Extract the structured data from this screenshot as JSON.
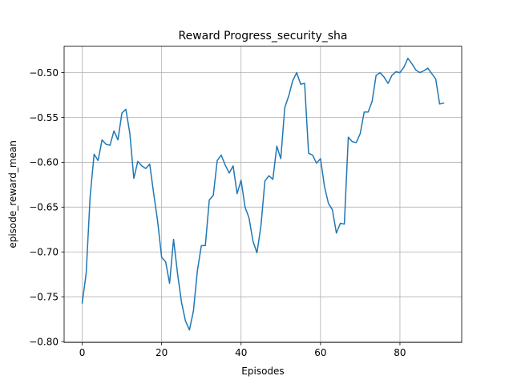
{
  "chart_data": {
    "type": "line",
    "title": "Reward Progress_security_sha",
    "xlabel": "Episodes",
    "ylabel": "episode_reward_mean",
    "grid": true,
    "xlim": [
      -4.55,
      95.55
    ],
    "ylim": [
      -0.801,
      -0.4705
    ],
    "xticks": [
      0,
      20,
      40,
      60,
      80
    ],
    "xtick_labels": [
      "0",
      "20",
      "40",
      "60",
      "80"
    ],
    "yticks": [
      -0.8,
      -0.75,
      -0.7,
      -0.65,
      -0.6,
      -0.55,
      -0.5
    ],
    "ytick_labels": [
      "−0.80",
      "−0.75",
      "−0.70",
      "−0.65",
      "−0.60",
      "−0.55",
      "−0.50"
    ],
    "colors": {
      "line": "#1f77b4",
      "grid": "#b0b0b0"
    },
    "series": [
      {
        "x": [
          0,
          1,
          2,
          3,
          4,
          5,
          6,
          7,
          8,
          9,
          10,
          11,
          12,
          13,
          14,
          15,
          16,
          17,
          18,
          19,
          20,
          21,
          22,
          23,
          24,
          25,
          26,
          27,
          28,
          29,
          30,
          31,
          32,
          33,
          34,
          35,
          36,
          37,
          38,
          39,
          40,
          41,
          42,
          43,
          44,
          45,
          46,
          47,
          48,
          49,
          50,
          51,
          52,
          53,
          54,
          55,
          56,
          57,
          58,
          59,
          60,
          61,
          62,
          63,
          64,
          65,
          66,
          67,
          68,
          69,
          70,
          71,
          72,
          73,
          74,
          75,
          76,
          77,
          78,
          79,
          80,
          81,
          82,
          83,
          84,
          85,
          86,
          87,
          88,
          89,
          90,
          91
        ],
        "values": [
          -0.757,
          -0.724,
          -0.638,
          -0.591,
          -0.598,
          -0.575,
          -0.58,
          -0.581,
          -0.565,
          -0.575,
          -0.545,
          -0.541,
          -0.568,
          -0.618,
          -0.599,
          -0.604,
          -0.607,
          -0.602,
          -0.635,
          -0.666,
          -0.706,
          -0.711,
          -0.735,
          -0.686,
          -0.724,
          -0.756,
          -0.777,
          -0.787,
          -0.766,
          -0.721,
          -0.693,
          -0.693,
          -0.642,
          -0.637,
          -0.598,
          -0.592,
          -0.603,
          -0.612,
          -0.604,
          -0.635,
          -0.62,
          -0.65,
          -0.662,
          -0.688,
          -0.701,
          -0.671,
          -0.621,
          -0.615,
          -0.619,
          -0.582,
          -0.596,
          -0.539,
          -0.526,
          -0.509,
          -0.5,
          -0.513,
          -0.512,
          -0.59,
          -0.592,
          -0.601,
          -0.596,
          -0.627,
          -0.646,
          -0.653,
          -0.679,
          -0.668,
          -0.669,
          -0.572,
          -0.577,
          -0.578,
          -0.568,
          -0.544,
          -0.544,
          -0.532,
          -0.503,
          -0.5,
          -0.505,
          -0.512,
          -0.503,
          -0.499,
          -0.5,
          -0.494,
          -0.484,
          -0.49,
          -0.497,
          -0.5,
          -0.498,
          -0.495,
          -0.501,
          -0.507,
          -0.535,
          -0.534
        ]
      }
    ]
  }
}
